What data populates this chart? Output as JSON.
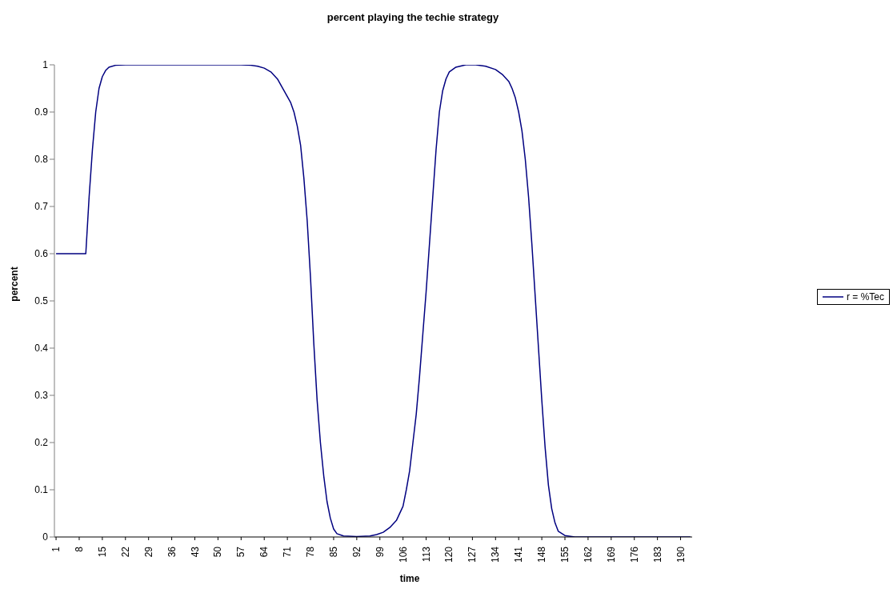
{
  "chart_data": {
    "type": "line",
    "title": "percent playing the techie strategy",
    "xlabel": "time",
    "ylabel": "percent",
    "x": [
      1,
      10,
      11,
      12,
      13,
      14,
      15,
      16,
      17,
      19,
      22,
      57,
      60,
      62,
      64,
      66,
      68,
      70,
      72,
      73,
      74,
      75,
      76,
      77,
      78,
      79,
      80,
      81,
      82,
      83,
      84,
      85,
      86,
      88,
      92,
      96,
      98,
      100,
      102,
      104,
      106,
      107,
      108,
      109,
      110,
      111,
      112,
      113,
      114,
      115,
      116,
      117,
      118,
      119,
      120,
      122,
      125,
      128,
      131,
      134,
      136,
      138,
      139,
      140,
      141,
      142,
      143,
      144,
      145,
      146,
      147,
      148,
      149,
      150,
      151,
      152,
      153,
      155,
      158,
      193
    ],
    "series": [
      {
        "name": "r = %Tec",
        "color": "#000080",
        "values": [
          0.6,
          0.6,
          0.72,
          0.82,
          0.9,
          0.95,
          0.975,
          0.988,
          0.995,
          0.999,
          1,
          1,
          0.999,
          0.997,
          0.993,
          0.985,
          0.97,
          0.945,
          0.92,
          0.9,
          0.87,
          0.83,
          0.76,
          0.67,
          0.55,
          0.41,
          0.29,
          0.2,
          0.13,
          0.075,
          0.04,
          0.017,
          0.007,
          0.002,
          0.001,
          0.002,
          0.005,
          0.01,
          0.02,
          0.035,
          0.065,
          0.1,
          0.14,
          0.2,
          0.26,
          0.34,
          0.43,
          0.52,
          0.62,
          0.72,
          0.82,
          0.9,
          0.945,
          0.97,
          0.985,
          0.995,
          1,
          1,
          0.997,
          0.99,
          0.98,
          0.965,
          0.95,
          0.93,
          0.9,
          0.86,
          0.8,
          0.72,
          0.62,
          0.51,
          0.4,
          0.29,
          0.19,
          0.11,
          0.06,
          0.03,
          0.012,
          0.003,
          0,
          0
        ]
      }
    ],
    "xlim": [
      0.5,
      193.5
    ],
    "xticks": [
      1,
      8,
      15,
      22,
      29,
      36,
      43,
      50,
      57,
      64,
      71,
      78,
      85,
      92,
      99,
      106,
      113,
      120,
      127,
      134,
      141,
      148,
      155,
      162,
      169,
      176,
      183,
      190
    ],
    "ylim": [
      0,
      1
    ],
    "yticks": [
      0,
      0.1,
      0.2,
      0.3,
      0.4,
      0.5,
      0.6,
      0.7,
      0.8,
      0.9,
      1
    ],
    "grid": false,
    "legend": "right",
    "marker": "none",
    "line_style": "solid"
  }
}
